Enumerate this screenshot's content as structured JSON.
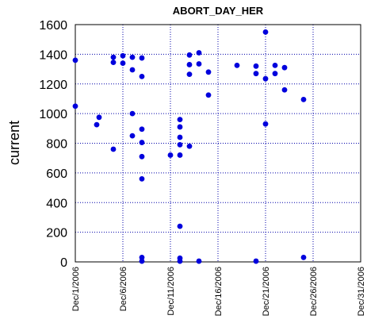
{
  "chart_data": {
    "type": "scatter",
    "title": "ABORT_DAY_HER",
    "xlabel": "",
    "ylabel": "current",
    "xlim": [
      "2006-12-01",
      "2006-12-31"
    ],
    "ylim": [
      0,
      1600
    ],
    "grid": true,
    "legend": "none",
    "x_tick_labels": [
      "Dec/1/2006",
      "Dec/6/2006",
      "Dec/11/2006",
      "Dec/16/2006",
      "Dec/21/2006",
      "Dec/26/2006",
      "Dec/31/2006"
    ],
    "y_ticks": [
      0,
      200,
      400,
      600,
      800,
      1000,
      1200,
      1400,
      1600
    ],
    "colors": {
      "marker": "#0000dd",
      "grid": "#0000aa",
      "axes": "#000000"
    },
    "series": [
      {
        "points": [
          [
            "2006-12-01 00:00",
            1360
          ],
          [
            "2006-12-01 00:00",
            1050
          ],
          [
            "2006-12-03 06:00",
            925
          ],
          [
            "2006-12-03 12:00",
            975
          ],
          [
            "2006-12-05 00:00",
            1380
          ],
          [
            "2006-12-05 00:00",
            1345
          ],
          [
            "2006-12-05 00:00",
            760
          ],
          [
            "2006-12-06 00:00",
            1390
          ],
          [
            "2006-12-06 00:00",
            1340
          ],
          [
            "2006-12-07 00:00",
            1380
          ],
          [
            "2006-12-07 00:00",
            1295
          ],
          [
            "2006-12-07 00:00",
            1000
          ],
          [
            "2006-12-07 00:00",
            850
          ],
          [
            "2006-12-08 00:00",
            1375
          ],
          [
            "2006-12-08 00:00",
            1250
          ],
          [
            "2006-12-08 00:00",
            895
          ],
          [
            "2006-12-08 00:00",
            805
          ],
          [
            "2006-12-08 00:00",
            710
          ],
          [
            "2006-12-08 00:00",
            560
          ],
          [
            "2006-12-08 00:00",
            30
          ],
          [
            "2006-12-08 00:00",
            5
          ],
          [
            "2006-12-11 00:00",
            720
          ],
          [
            "2006-12-12 00:00",
            960
          ],
          [
            "2006-12-12 00:00",
            910
          ],
          [
            "2006-12-12 00:00",
            840
          ],
          [
            "2006-12-12 00:00",
            790
          ],
          [
            "2006-12-12 00:00",
            720
          ],
          [
            "2006-12-12 00:00",
            240
          ],
          [
            "2006-12-12 00:00",
            25
          ],
          [
            "2006-12-12 00:00",
            5
          ],
          [
            "2006-12-13 00:00",
            1395
          ],
          [
            "2006-12-13 00:00",
            1330
          ],
          [
            "2006-12-13 00:00",
            1265
          ],
          [
            "2006-12-13 00:00",
            780
          ],
          [
            "2006-12-14 00:00",
            1410
          ],
          [
            "2006-12-14 00:00",
            1335
          ],
          [
            "2006-12-14 00:00",
            5
          ],
          [
            "2006-12-15 00:00",
            1280
          ],
          [
            "2006-12-15 00:00",
            1125
          ],
          [
            "2006-12-18 00:00",
            1325
          ],
          [
            "2006-12-20 00:00",
            1320
          ],
          [
            "2006-12-20 00:00",
            1270
          ],
          [
            "2006-12-20 00:00",
            5
          ],
          [
            "2006-12-21 00:00",
            1550
          ],
          [
            "2006-12-21 00:00",
            1235
          ],
          [
            "2006-12-21 00:00",
            930
          ],
          [
            "2006-12-22 00:00",
            1325
          ],
          [
            "2006-12-22 00:00",
            1270
          ],
          [
            "2006-12-23 00:00",
            1310
          ],
          [
            "2006-12-23 00:00",
            1160
          ],
          [
            "2006-12-25 00:00",
            1095
          ],
          [
            "2006-12-25 00:00",
            30
          ]
        ]
      }
    ]
  }
}
